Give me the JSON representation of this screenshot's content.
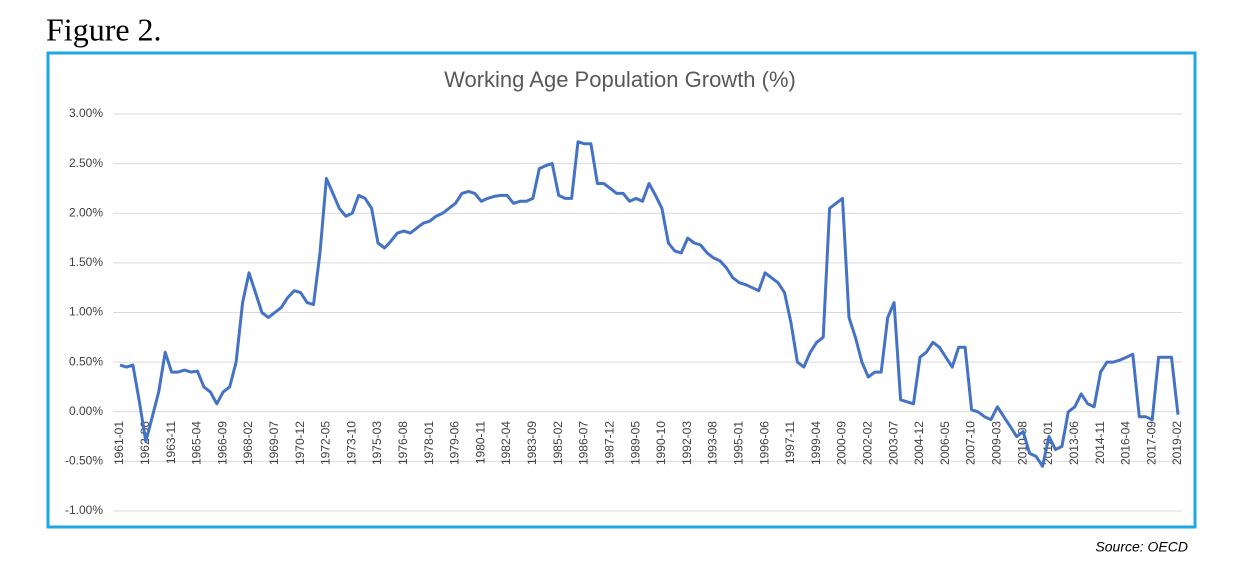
{
  "figure_label": "Figure 2.",
  "source": "Source: OECD",
  "chart_data": {
    "type": "line",
    "title": "Working Age Population Growth (%)",
    "categories": [
      "1961-01",
      null,
      null,
      null,
      "1962-06",
      null,
      null,
      null,
      "1963-11",
      null,
      null,
      null,
      "1965-04",
      null,
      null,
      null,
      "1966-09",
      null,
      null,
      null,
      "1968-02",
      null,
      null,
      null,
      "1969-07",
      null,
      null,
      null,
      "1970-12",
      null,
      null,
      null,
      "1972-05",
      null,
      null,
      null,
      "1973-10",
      null,
      null,
      null,
      "1975-03",
      null,
      null,
      null,
      "1976-08",
      null,
      null,
      null,
      "1978-01",
      null,
      null,
      null,
      "1979-06",
      null,
      null,
      null,
      "1980-11",
      null,
      null,
      null,
      "1982-04",
      null,
      null,
      null,
      "1983-09",
      null,
      null,
      null,
      "1985-02",
      null,
      null,
      null,
      "1986-07",
      null,
      null,
      null,
      "1987-12",
      null,
      null,
      null,
      "1989-05",
      null,
      null,
      null,
      "1990-10",
      null,
      null,
      null,
      "1992-03",
      null,
      null,
      null,
      "1993-08",
      null,
      null,
      null,
      "1995-01",
      null,
      null,
      null,
      "1996-06",
      null,
      null,
      null,
      "1997-11",
      null,
      null,
      null,
      "1999-04",
      null,
      null,
      null,
      "2000-09",
      null,
      null,
      null,
      "2002-02",
      null,
      null,
      null,
      "2003-07",
      null,
      null,
      null,
      "2004-12",
      null,
      null,
      null,
      "2006-05",
      null,
      null,
      null,
      "2007-10",
      null,
      null,
      null,
      "2009-03",
      null,
      null,
      null,
      "2010-08",
      null,
      null,
      null,
      "2012-01",
      null,
      null,
      null,
      "2013-06",
      null,
      null,
      null,
      "2014-11",
      null,
      null,
      null,
      "2016-04",
      null,
      null,
      null,
      "2017-09",
      null,
      null,
      null,
      "2019-02"
    ],
    "series": [
      {
        "name": "Working Age Population Growth",
        "color": "#4472c4",
        "values": [
          0.47,
          0.45,
          0.47,
          0.1,
          -0.3,
          -0.05,
          0.2,
          0.6,
          0.4,
          0.4,
          0.42,
          0.4,
          0.41,
          0.25,
          0.2,
          0.08,
          0.2,
          0.25,
          0.5,
          1.1,
          1.4,
          1.2,
          1.0,
          0.95,
          1.0,
          1.05,
          1.15,
          1.22,
          1.2,
          1.1,
          1.08,
          1.6,
          2.35,
          2.2,
          2.05,
          1.97,
          2.0,
          2.18,
          2.15,
          2.05,
          1.7,
          1.65,
          1.72,
          1.8,
          1.82,
          1.8,
          1.85,
          1.9,
          1.92,
          1.97,
          2.0,
          2.05,
          2.1,
          2.2,
          2.22,
          2.2,
          2.12,
          2.15,
          2.17,
          2.18,
          2.18,
          2.1,
          2.12,
          2.12,
          2.15,
          2.45,
          2.48,
          2.5,
          2.18,
          2.15,
          2.15,
          2.72,
          2.7,
          2.7,
          2.3,
          2.3,
          2.25,
          2.2,
          2.2,
          2.12,
          2.15,
          2.12,
          2.3,
          2.18,
          2.05,
          1.7,
          1.62,
          1.6,
          1.75,
          1.7,
          1.68,
          1.6,
          1.55,
          1.52,
          1.45,
          1.35,
          1.3,
          1.28,
          1.25,
          1.22,
          1.4,
          1.35,
          1.3,
          1.2,
          0.9,
          0.5,
          0.45,
          0.6,
          0.7,
          0.75,
          2.05,
          2.1,
          2.15,
          0.95,
          0.75,
          0.5,
          0.35,
          0.4,
          0.4,
          0.95,
          1.1,
          0.12,
          0.1,
          0.08,
          0.55,
          0.6,
          0.7,
          0.65,
          0.55,
          0.45,
          0.65,
          0.65,
          0.02,
          0.0,
          -0.05,
          -0.08,
          0.05,
          -0.05,
          -0.15,
          -0.25,
          -0.2,
          -0.42,
          -0.45,
          -0.55,
          -0.25,
          -0.38,
          -0.35,
          0.0,
          0.05,
          0.18,
          0.08,
          0.05,
          0.4,
          0.5,
          0.5,
          0.52,
          0.55,
          0.58,
          -0.05,
          -0.05,
          -0.08,
          0.55,
          0.55,
          0.55,
          -0.03
        ]
      }
    ],
    "ylim": [
      -1,
      3
    ],
    "yticks": [
      {
        "value": -1,
        "label": "-1.00%"
      },
      {
        "value": -0.5,
        "label": "-0.50%"
      },
      {
        "value": 0,
        "label": "0.00%"
      },
      {
        "value": 0.5,
        "label": "0.50%"
      },
      {
        "value": 1,
        "label": "1.00%"
      },
      {
        "value": 1.5,
        "label": "1.50%"
      },
      {
        "value": 2,
        "label": "2.00%"
      },
      {
        "value": 2.5,
        "label": "2.50%"
      },
      {
        "value": 3,
        "label": "3.00%"
      }
    ],
    "grid": true
  }
}
